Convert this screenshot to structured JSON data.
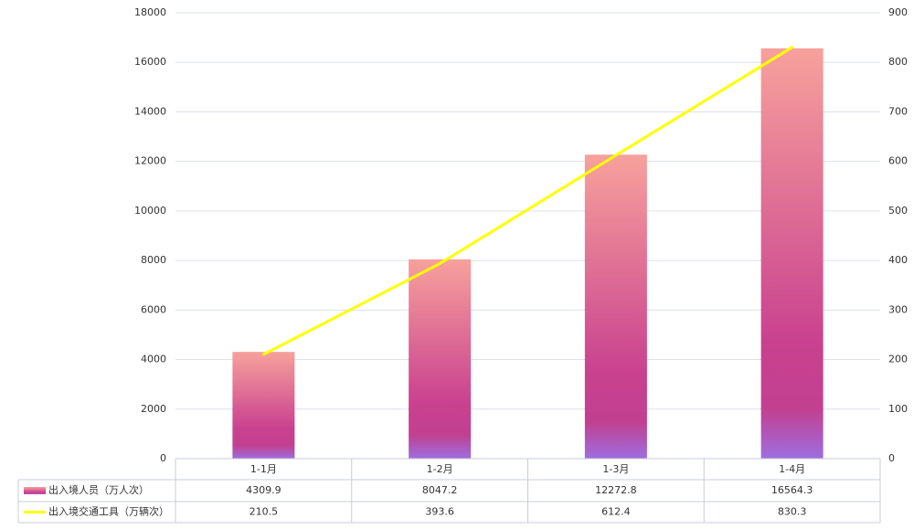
{
  "chart_data": {
    "type": "bar-line-table",
    "categories": [
      "1-1月",
      "1-2月",
      "1-3月",
      "1-4月"
    ],
    "series": [
      {
        "name": "出入境人员（万人次）",
        "type": "bar",
        "color": "#c9418f",
        "values": [
          4309.9,
          8047.2,
          12272.8,
          16564.3
        ]
      },
      {
        "name": "出入境交通工具（万辆次）",
        "type": "line",
        "axis": "y2",
        "color": "#ffff00",
        "values": [
          210.5,
          393.6,
          612.4,
          830.3
        ]
      }
    ],
    "ylim": [
      0,
      18000
    ],
    "yticks": [
      0,
      2000,
      4000,
      6000,
      8000,
      10000,
      12000,
      14000,
      16000,
      18000
    ],
    "y2lim": [
      0,
      900
    ],
    "y2ticks": [
      0,
      100,
      200,
      300,
      400,
      500,
      600,
      700,
      800,
      900
    ],
    "grid": true
  }
}
